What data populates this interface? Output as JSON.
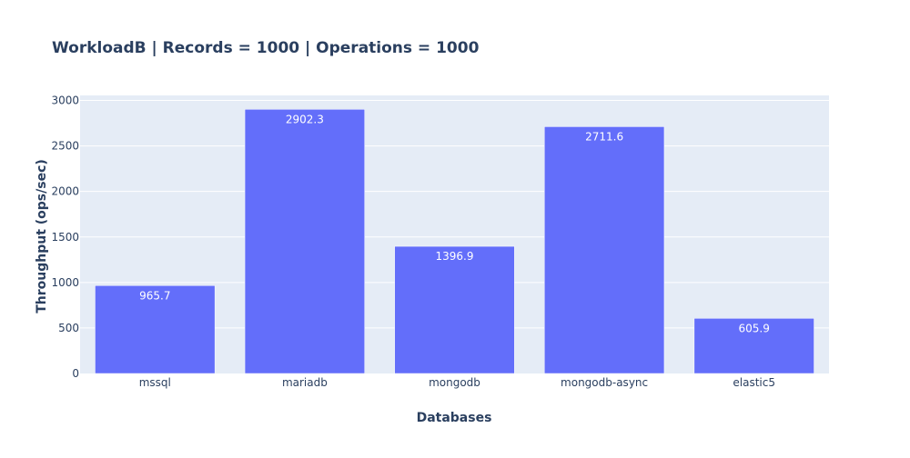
{
  "chart_data": {
    "type": "bar",
    "title": "WorkloadB | Records = 1000 | Operations = 1000",
    "xlabel": "Databases",
    "ylabel": "Throughput (ops/sec)",
    "categories": [
      "mssql",
      "mariadb",
      "mongodb",
      "mongodb-async",
      "elastic5"
    ],
    "values": [
      965.7,
      2902.3,
      1396.9,
      2711.6,
      605.9
    ],
    "data_labels": [
      "965.7",
      "2902.3",
      "1396.9",
      "2711.6",
      "605.9"
    ],
    "y_ticks": [
      0,
      500,
      1000,
      1500,
      2000,
      2500,
      3000
    ],
    "ylim": [
      0,
      3055
    ],
    "grid": true,
    "legend": "none",
    "colors": {
      "bar": "#636efa",
      "plot_background": "#e5ecf6",
      "grid": "#ffffff",
      "text": "#2a3f5f",
      "bar_label": "#ffffff"
    }
  }
}
